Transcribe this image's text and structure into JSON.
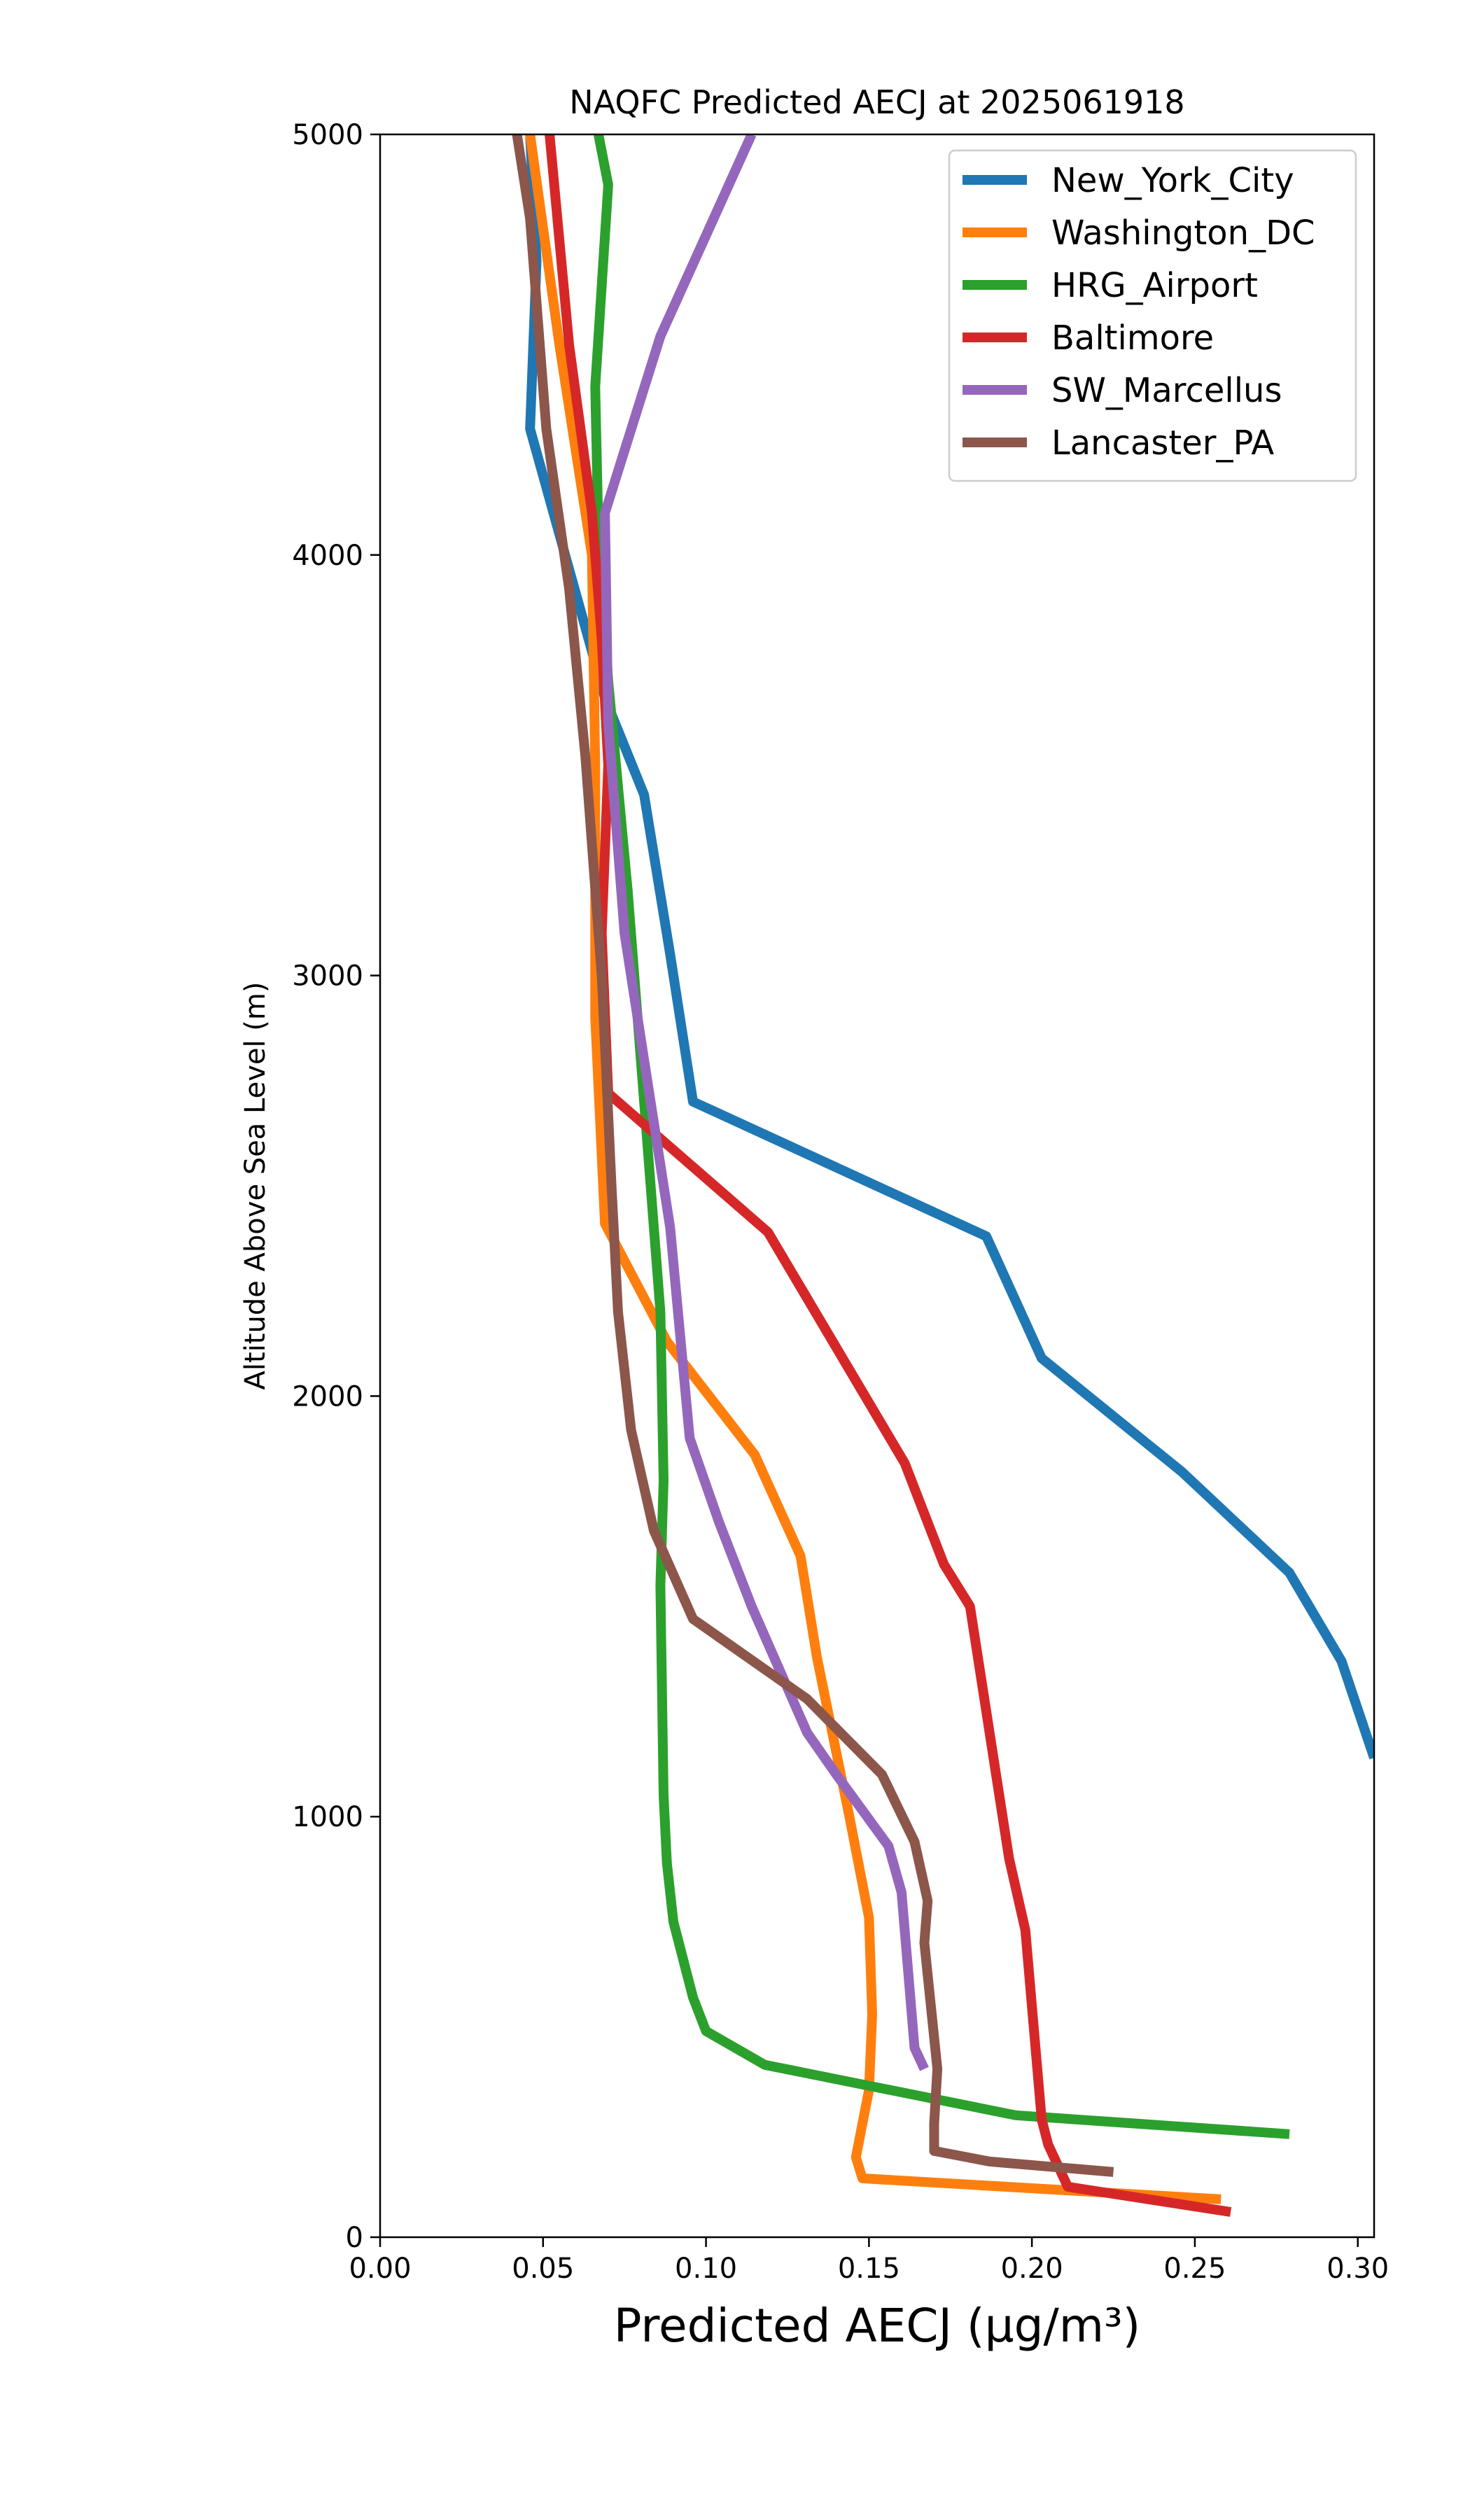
{
  "chart_data": {
    "type": "line",
    "title": "NAQFC Predicted AECJ at 2025061918",
    "xlabel": "Predicted AECJ (μg/m³)",
    "ylabel": "Altitude Above Sea Level (m)",
    "xlim": [
      0.0,
      0.305
    ],
    "ylim": [
      0,
      5000
    ],
    "xticks": [
      "0.00",
      "0.05",
      "0.10",
      "0.15",
      "0.20",
      "0.25",
      "0.30"
    ],
    "xtick_values": [
      0.0,
      0.05,
      0.1,
      0.15,
      0.2,
      0.25,
      0.3
    ],
    "yticks": [
      "0",
      "1000",
      "2000",
      "3000",
      "4000",
      "5000"
    ],
    "ytick_values": [
      0,
      1000,
      2000,
      3000,
      4000,
      5000
    ],
    "grid": false,
    "legend_position": "top-right",
    "series": [
      {
        "name": "New_York_City",
        "color": "#1f77b4",
        "points": [
          [
            0.305,
            1140
          ],
          [
            0.295,
            1370
          ],
          [
            0.279,
            1580
          ],
          [
            0.246,
            1820
          ],
          [
            0.203,
            2090
          ],
          [
            0.186,
            2380
          ],
          [
            0.096,
            2700
          ],
          [
            0.089,
            3050
          ],
          [
            0.081,
            3430
          ],
          [
            0.069,
            3660
          ],
          [
            0.046,
            4300
          ],
          [
            0.048,
            4700
          ],
          [
            0.046,
            5000
          ]
        ]
      },
      {
        "name": "Washington_DC",
        "color": "#ff7f0e",
        "points": [
          [
            0.258,
            90
          ],
          [
            0.148,
            140
          ],
          [
            0.146,
            190
          ],
          [
            0.15,
            350
          ],
          [
            0.151,
            530
          ],
          [
            0.15,
            760
          ],
          [
            0.144,
            1000
          ],
          [
            0.134,
            1380
          ],
          [
            0.129,
            1620
          ],
          [
            0.115,
            1860
          ],
          [
            0.088,
            2130
          ],
          [
            0.069,
            2410
          ],
          [
            0.066,
            2900
          ],
          [
            0.066,
            3500
          ],
          [
            0.065,
            4000
          ],
          [
            0.055,
            4500
          ],
          [
            0.046,
            5000
          ]
        ]
      },
      {
        "name": "HRG_Airport",
        "color": "#2ca02c",
        "points": [
          [
            0.279,
            245
          ],
          [
            0.195,
            290
          ],
          [
            0.118,
            410
          ],
          [
            0.1,
            490
          ],
          [
            0.096,
            570
          ],
          [
            0.09,
            750
          ],
          [
            0.088,
            890
          ],
          [
            0.087,
            1050
          ],
          [
            0.086,
            1550
          ],
          [
            0.087,
            1800
          ],
          [
            0.086,
            2200
          ],
          [
            0.082,
            2600
          ],
          [
            0.076,
            3200
          ],
          [
            0.07,
            3700
          ],
          [
            0.067,
            4050
          ],
          [
            0.066,
            4400
          ],
          [
            0.07,
            4880
          ],
          [
            0.067,
            5000
          ]
        ]
      },
      {
        "name": "Baltimore",
        "color": "#d62728",
        "points": [
          [
            0.261,
            60
          ],
          [
            0.211,
            120
          ],
          [
            0.205,
            220
          ],
          [
            0.203,
            280
          ],
          [
            0.198,
            730
          ],
          [
            0.193,
            900
          ],
          [
            0.181,
            1500
          ],
          [
            0.173,
            1600
          ],
          [
            0.161,
            1840
          ],
          [
            0.119,
            2390
          ],
          [
            0.07,
            2720
          ],
          [
            0.068,
            3100
          ],
          [
            0.07,
            3500
          ],
          [
            0.068,
            3800
          ],
          [
            0.065,
            4100
          ],
          [
            0.058,
            4500
          ],
          [
            0.052,
            5000
          ]
        ]
      },
      {
        "name": "SW_Marcellus",
        "color": "#9467bd",
        "points": [
          [
            0.167,
            400
          ],
          [
            0.164,
            450
          ],
          [
            0.16,
            820
          ],
          [
            0.156,
            930
          ],
          [
            0.14,
            1100
          ],
          [
            0.131,
            1200
          ],
          [
            0.114,
            1500
          ],
          [
            0.104,
            1700
          ],
          [
            0.095,
            1900
          ],
          [
            0.089,
            2400
          ],
          [
            0.081,
            2800
          ],
          [
            0.075,
            3100
          ],
          [
            0.07,
            3600
          ],
          [
            0.069,
            4100
          ],
          [
            0.086,
            4520
          ],
          [
            0.114,
            5000
          ]
        ]
      },
      {
        "name": "Lancaster_PA",
        "color": "#8c564b",
        "points": [
          [
            0.225,
            155
          ],
          [
            0.187,
            180
          ],
          [
            0.17,
            205
          ],
          [
            0.17,
            270
          ],
          [
            0.171,
            400
          ],
          [
            0.167,
            700
          ],
          [
            0.168,
            800
          ],
          [
            0.164,
            940
          ],
          [
            0.154,
            1100
          ],
          [
            0.131,
            1280
          ],
          [
            0.096,
            1470
          ],
          [
            0.084,
            1680
          ],
          [
            0.077,
            1920
          ],
          [
            0.073,
            2200
          ],
          [
            0.071,
            2500
          ],
          [
            0.068,
            3000
          ],
          [
            0.063,
            3520
          ],
          [
            0.058,
            3920
          ],
          [
            0.051,
            4300
          ],
          [
            0.046,
            4800
          ],
          [
            0.042,
            5000
          ]
        ]
      }
    ]
  }
}
